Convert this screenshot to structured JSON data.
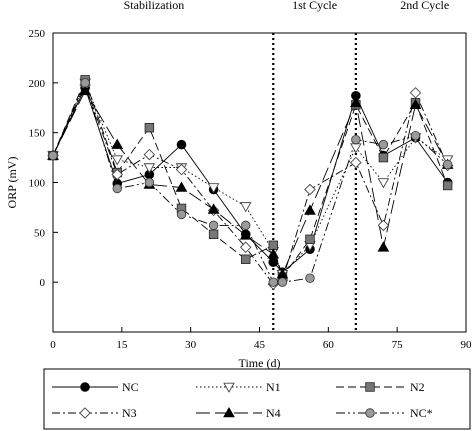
{
  "chart_data": {
    "type": "line",
    "title": "",
    "xlabel": "Time (d)",
    "ylabel": "ORP (mV)",
    "xlim": [
      0,
      90
    ],
    "ylim": [
      -50,
      250
    ],
    "xticks": [
      0,
      15,
      30,
      45,
      60,
      75,
      90
    ],
    "yticks": [
      0,
      50,
      100,
      150,
      200,
      250
    ],
    "xtick_labels": [
      "0",
      "15",
      "30",
      "45",
      "60",
      "75",
      "90"
    ],
    "ytick_labels": [
      "0",
      "50",
      "100",
      "150",
      "200",
      "250"
    ],
    "grid": false,
    "legend_position": "bottom",
    "regions": [
      {
        "label": "Stabilization",
        "x_center": 22
      },
      {
        "label": "1st Cycle",
        "x_center": 57
      },
      {
        "label": "2nd Cycle",
        "x_center": 81
      }
    ],
    "dividers": [
      48,
      66
    ],
    "series": [
      {
        "name": "NC",
        "marker": "circle-filled",
        "dash": "solid",
        "color": "#000000",
        "x": [
          0,
          7,
          14,
          21,
          28,
          35,
          42,
          48,
          50,
          56,
          66,
          72,
          79,
          86
        ],
        "y": [
          127,
          195,
          99,
          108,
          138,
          93,
          48,
          20,
          10,
          33,
          187,
          127,
          145,
          100
        ]
      },
      {
        "name": "N1",
        "marker": "triangle-down-open",
        "dash": "dotted",
        "color": "#000000",
        "x": [
          0,
          7,
          14,
          21,
          28,
          35,
          42,
          48,
          50,
          56,
          66,
          72,
          79,
          86
        ],
        "y": [
          127,
          200,
          123,
          115,
          115,
          95,
          76,
          31,
          8,
          37,
          135,
          100,
          145,
          123
        ]
      },
      {
        "name": "N2",
        "marker": "square-gray",
        "dash": "dash",
        "color": "#000000",
        "x": [
          0,
          7,
          14,
          21,
          28,
          35,
          42,
          48,
          50,
          56,
          66,
          72,
          79,
          86
        ],
        "y": [
          127,
          203,
          110,
          155,
          74,
          48,
          23,
          37,
          5,
          43,
          178,
          125,
          180,
          97
        ]
      },
      {
        "name": "N3",
        "marker": "diamond-open",
        "dash": "dashdot",
        "color": "#000000",
        "x": [
          0,
          7,
          14,
          21,
          28,
          35,
          42,
          48,
          50,
          56,
          66,
          72,
          79,
          86
        ],
        "y": [
          127,
          198,
          108,
          128,
          113,
          72,
          35,
          -2,
          2,
          93,
          120,
          57,
          190,
          117
        ]
      },
      {
        "name": "N4",
        "marker": "triangle-up-filled",
        "dash": "longdash",
        "color": "#000000",
        "x": [
          0,
          7,
          14,
          21,
          28,
          35,
          42,
          48,
          50,
          56,
          66,
          72,
          79,
          86
        ],
        "y": [
          127,
          192,
          138,
          98,
          95,
          73,
          47,
          28,
          8,
          72,
          180,
          35,
          178,
          118
        ]
      },
      {
        "name": "NC*",
        "marker": "circle-gray",
        "dash": "dashdotdot",
        "color": "#000000",
        "x": [
          0,
          7,
          14,
          21,
          28,
          35,
          42,
          48,
          50,
          56,
          66,
          72,
          79,
          86
        ],
        "y": [
          127,
          200,
          94,
          100,
          68,
          57,
          57,
          0,
          0,
          4,
          143,
          138,
          147,
          118
        ]
      }
    ]
  }
}
